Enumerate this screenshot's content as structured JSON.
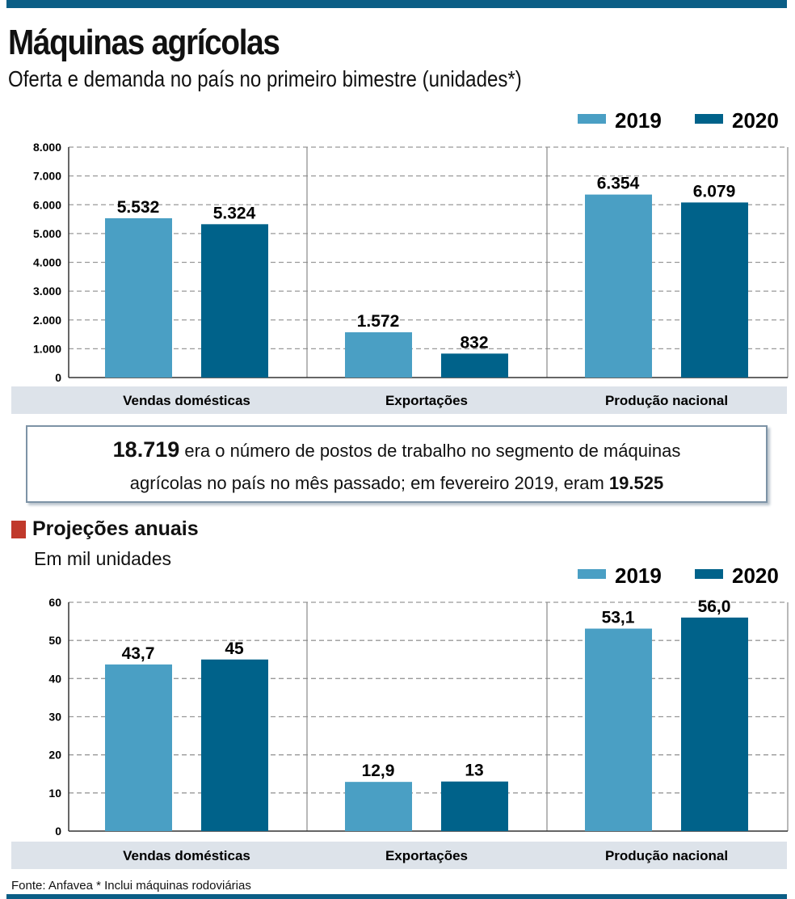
{
  "header": {
    "title": "Máquinas agrícolas",
    "subtitle": "Oferta e demanda no país no primeiro bimestre (unidades*)"
  },
  "colors": {
    "2019": "#4a9fc4",
    "2020": "#00628a",
    "brand": "#0b5e86",
    "band": "#dde3ea",
    "section_marker": "#c0392b"
  },
  "callout": {
    "value1": "18.719",
    "text1": " era o número de postos de trabalho no segmento de máquinas",
    "text2": "agrícolas no país no mês passado; em fevereiro 2019, eram ",
    "value2": "19.525"
  },
  "section": {
    "title": "Projeções anuais",
    "subtitle": "Em mil unidades"
  },
  "footer": {
    "source": "Fonte: Anfavea * Inclui máquinas rodoviárias"
  },
  "chart_data": [
    {
      "type": "bar",
      "categories": [
        "Vendas domésticas",
        "Exportações",
        "Produção nacional"
      ],
      "series": [
        {
          "name": "2019",
          "values": [
            5532,
            1572,
            6354
          ],
          "labels": [
            "5.532",
            "1.572",
            "6.354"
          ]
        },
        {
          "name": "2020",
          "values": [
            5324,
            832,
            6079
          ],
          "labels": [
            "5.324",
            "832",
            "6.079"
          ]
        }
      ],
      "ylim": [
        0,
        8000
      ],
      "yticks": [
        "0",
        "1.000",
        "2.000",
        "3.000",
        "4.000",
        "5.000",
        "6.000",
        "7.000",
        "8.000"
      ],
      "grid": true,
      "legend": "top-right"
    },
    {
      "type": "bar",
      "categories": [
        "Vendas domésticas",
        "Exportações",
        "Produção nacional"
      ],
      "series": [
        {
          "name": "2019",
          "values": [
            43.7,
            12.9,
            53.1
          ],
          "labels": [
            "43,7",
            "12,9",
            "53,1"
          ]
        },
        {
          "name": "2020",
          "values": [
            45,
            13,
            56.0
          ],
          "labels": [
            "45",
            "13",
            "56,0"
          ]
        }
      ],
      "ylim": [
        0,
        60
      ],
      "yticks": [
        "0",
        "10",
        "20",
        "30",
        "40",
        "50",
        "60"
      ],
      "grid": true,
      "legend": "top-right"
    }
  ]
}
